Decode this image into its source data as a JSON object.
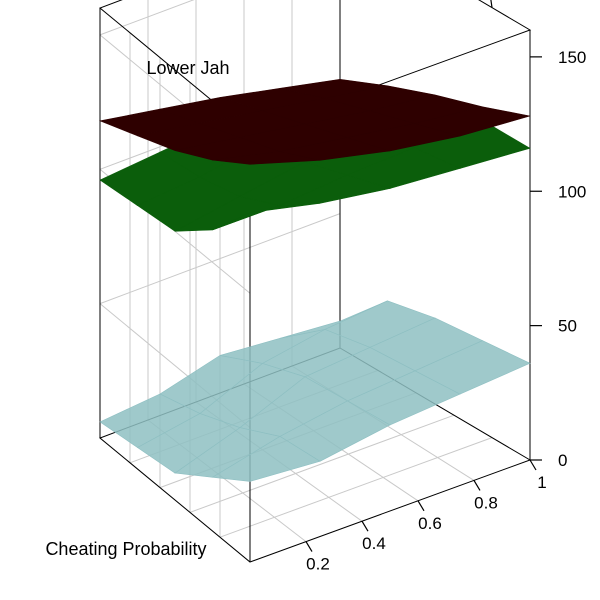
{
  "chart_data": {
    "type": "surface3d",
    "title": "",
    "xlabel": "Cheating Probability",
    "ylabel": "Lower Jah",
    "zlabel": "",
    "x_ticks": [
      "0.2",
      "0.4",
      "0.6",
      "0.8",
      "1"
    ],
    "y_ticks": [
      "0.2",
      "0.4",
      "0.6",
      "0.8",
      "1"
    ],
    "z_ticks": [
      "0",
      "50",
      "100",
      "150"
    ],
    "xlim": [
      0,
      1
    ],
    "ylim": [
      0,
      1
    ],
    "zlim": [
      0,
      160
    ],
    "grid": true,
    "x": [
      0.0,
      0.25,
      0.5,
      0.75,
      1.0
    ],
    "y": [
      0.0,
      0.25,
      0.5,
      0.75,
      1.0
    ],
    "series": [
      {
        "color": "#2e0000",
        "z": [
          [
            148,
            140,
            134,
            130,
            128
          ],
          [
            138,
            132,
            128,
            124,
            121
          ],
          [
            130,
            126,
            122,
            118,
            115
          ],
          [
            124,
            120,
            116,
            112,
            108
          ],
          [
            118,
            114,
            110,
            105,
            100
          ]
        ]
      },
      {
        "color": "#0b5e0b",
        "z": [
          [
            130,
            124,
            120,
            118,
            116
          ],
          [
            112,
            112,
            114,
            115,
            116
          ],
          [
            100,
            104,
            108,
            110,
            112
          ],
          [
            98,
            100,
            104,
            106,
            106
          ],
          [
            96,
            98,
            100,
            100,
            98
          ]
        ]
      },
      {
        "color": "#8ebfc2",
        "z": [
          [
            30,
            28,
            32,
            34,
            36
          ],
          [
            20,
            26,
            30,
            32,
            34
          ],
          [
            10,
            18,
            28,
            30,
            32
          ],
          [
            8,
            12,
            22,
            26,
            28
          ],
          [
            6,
            8,
            14,
            12,
            10
          ]
        ]
      }
    ]
  }
}
